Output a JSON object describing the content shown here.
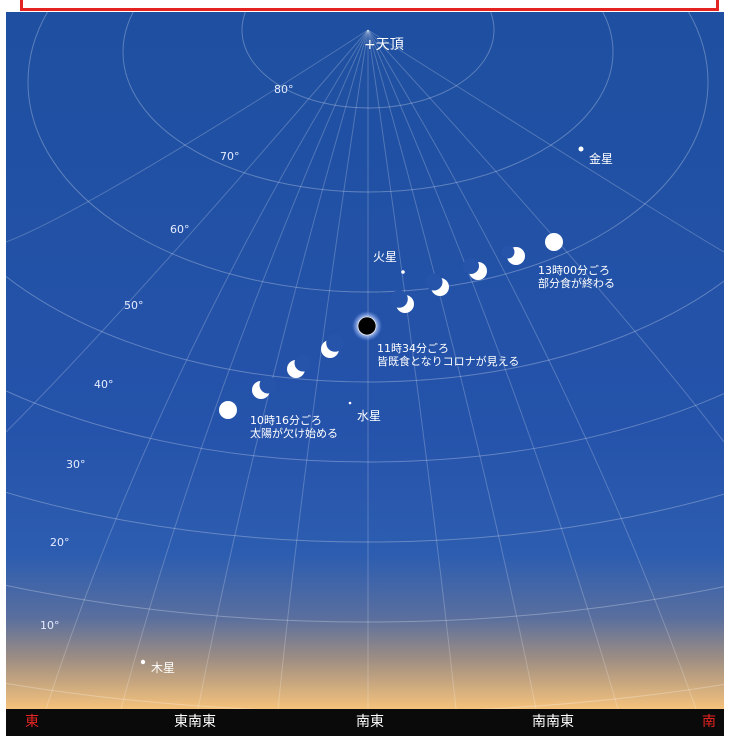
{
  "zenith_label": "+天頂",
  "altitude_labels": [
    "80°",
    "70°",
    "60°",
    "50°",
    "40°",
    "30°",
    "20°",
    "10°"
  ],
  "planets": {
    "venus": "金星",
    "mars": "火星",
    "mercury": "水星",
    "jupiter": "木星"
  },
  "annotations": {
    "start_time": "10時16分ごろ",
    "start_desc": "太陽が欠け始める",
    "total_time": "11時34分ごろ",
    "total_desc": "皆既食となりコロナが見える",
    "end_time": "13時00分ごろ",
    "end_desc": "部分食が終わる"
  },
  "directions": {
    "east": "東",
    "ese": "東南東",
    "se": "南東",
    "sse": "南南東",
    "south": "南"
  },
  "colors": {
    "sky_top": "#1e4fa0",
    "horizon_glow": "#f5c27c",
    "frame_red": "#e52421",
    "direction_red": "#e52421"
  }
}
